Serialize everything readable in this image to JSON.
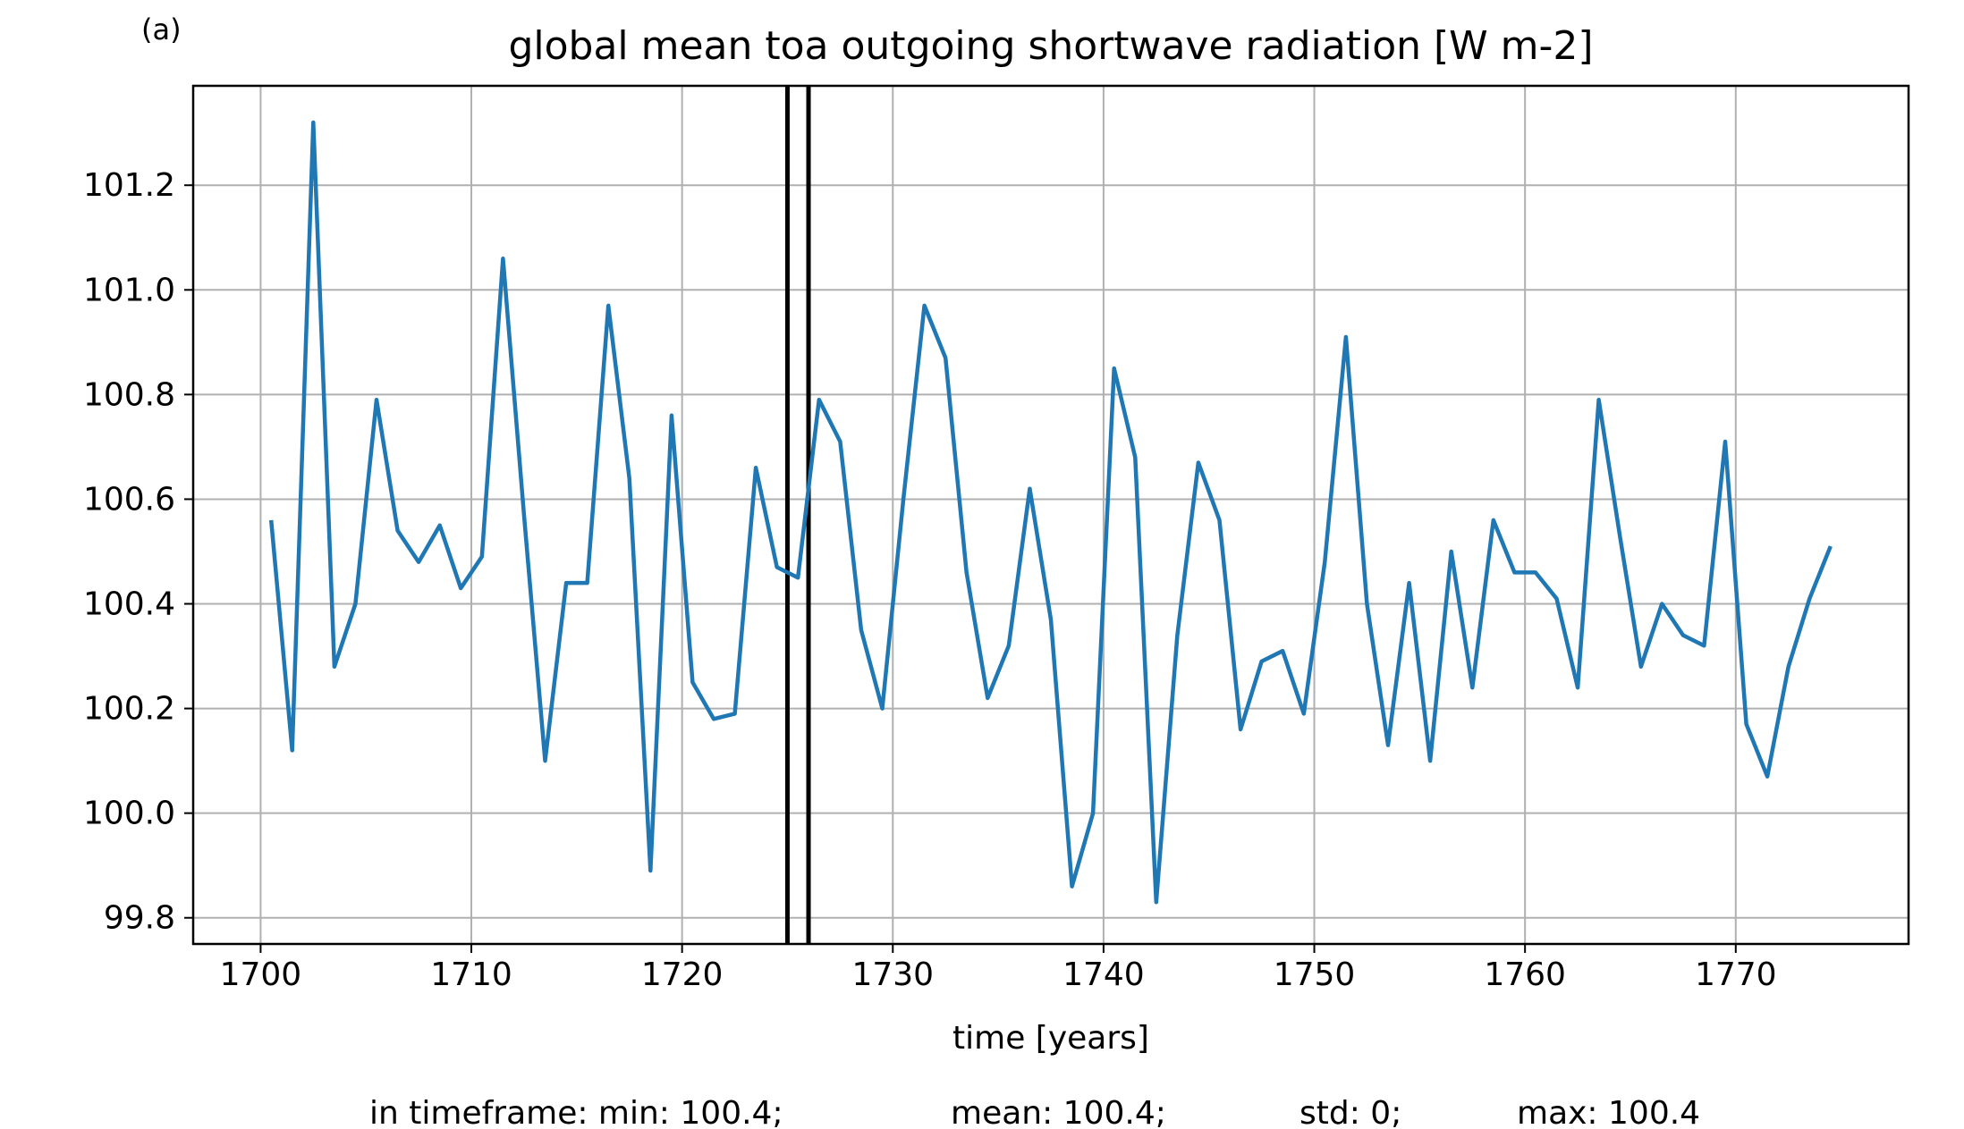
{
  "panel_label": "(a)",
  "chart_data": {
    "type": "line",
    "title": "global mean toa outgoing shortwave radiation [W m-2]",
    "xlabel": "time [years]",
    "ylabel": "",
    "xlim": [
      1696.8,
      1778.2
    ],
    "ylim": [
      99.75,
      101.39
    ],
    "grid": true,
    "x_ticks": [
      1700,
      1710,
      1720,
      1730,
      1740,
      1750,
      1760,
      1770
    ],
    "x_tick_labels": [
      "1700",
      "1710",
      "1720",
      "1730",
      "1740",
      "1750",
      "1760",
      "1770"
    ],
    "y_ticks": [
      99.8,
      100.0,
      100.2,
      100.4,
      100.6,
      100.8,
      101.0,
      101.2
    ],
    "y_tick_labels": [
      "99.8",
      "100.0",
      "100.2",
      "100.4",
      "100.6",
      "100.8",
      "101.0",
      "101.2"
    ],
    "vertical_lines": [
      1725.0,
      1726.0
    ],
    "vertical_line_color": "#000000",
    "series": [
      {
        "color": "#1f77b4",
        "x": [
          1700.5,
          1701.5,
          1702.5,
          1703.5,
          1704.5,
          1705.5,
          1706.5,
          1707.5,
          1708.5,
          1709.5,
          1710.5,
          1711.5,
          1712.5,
          1713.5,
          1714.5,
          1715.5,
          1716.5,
          1717.5,
          1718.5,
          1719.5,
          1720.5,
          1721.5,
          1722.5,
          1723.5,
          1724.5,
          1725.5,
          1726.5,
          1727.5,
          1728.5,
          1729.5,
          1730.5,
          1731.5,
          1732.5,
          1733.5,
          1734.5,
          1735.5,
          1736.5,
          1737.5,
          1738.5,
          1739.5,
          1740.5,
          1741.5,
          1742.5,
          1743.5,
          1744.5,
          1745.5,
          1746.5,
          1747.5,
          1748.5,
          1749.5,
          1750.5,
          1751.5,
          1752.5,
          1753.5,
          1754.5,
          1755.5,
          1756.5,
          1757.5,
          1758.5,
          1759.5,
          1760.5,
          1761.5,
          1762.5,
          1763.5,
          1764.5,
          1765.5,
          1766.5,
          1767.5,
          1768.5,
          1769.5,
          1770.5,
          1771.5,
          1772.5,
          1773.5,
          1774.5
        ],
        "values": [
          100.56,
          100.12,
          101.32,
          100.28,
          100.4,
          100.79,
          100.54,
          100.48,
          100.55,
          100.43,
          100.49,
          101.06,
          100.57,
          100.1,
          100.44,
          100.44,
          100.97,
          100.64,
          99.89,
          100.76,
          100.25,
          100.18,
          100.19,
          100.66,
          100.47,
          100.45,
          100.79,
          100.71,
          100.35,
          100.2,
          100.6,
          100.97,
          100.87,
          100.46,
          100.22,
          100.32,
          100.62,
          100.37,
          99.86,
          100.0,
          100.85,
          100.68,
          99.83,
          100.34,
          100.67,
          100.56,
          100.16,
          100.29,
          100.31,
          100.19,
          100.48,
          100.91,
          100.4,
          100.13,
          100.44,
          100.1,
          100.5,
          100.24,
          100.56,
          100.46,
          100.46,
          100.41,
          100.24,
          100.79,
          100.53,
          100.28,
          100.4,
          100.34,
          100.32,
          100.71,
          100.17,
          100.07,
          100.28,
          100.41,
          100.51
        ]
      }
    ]
  },
  "stats": {
    "prefix": "in timeframe: min: 100.4;",
    "mean": "mean: 100.4;",
    "std": "std: 0;",
    "max": "max: 100.4"
  }
}
